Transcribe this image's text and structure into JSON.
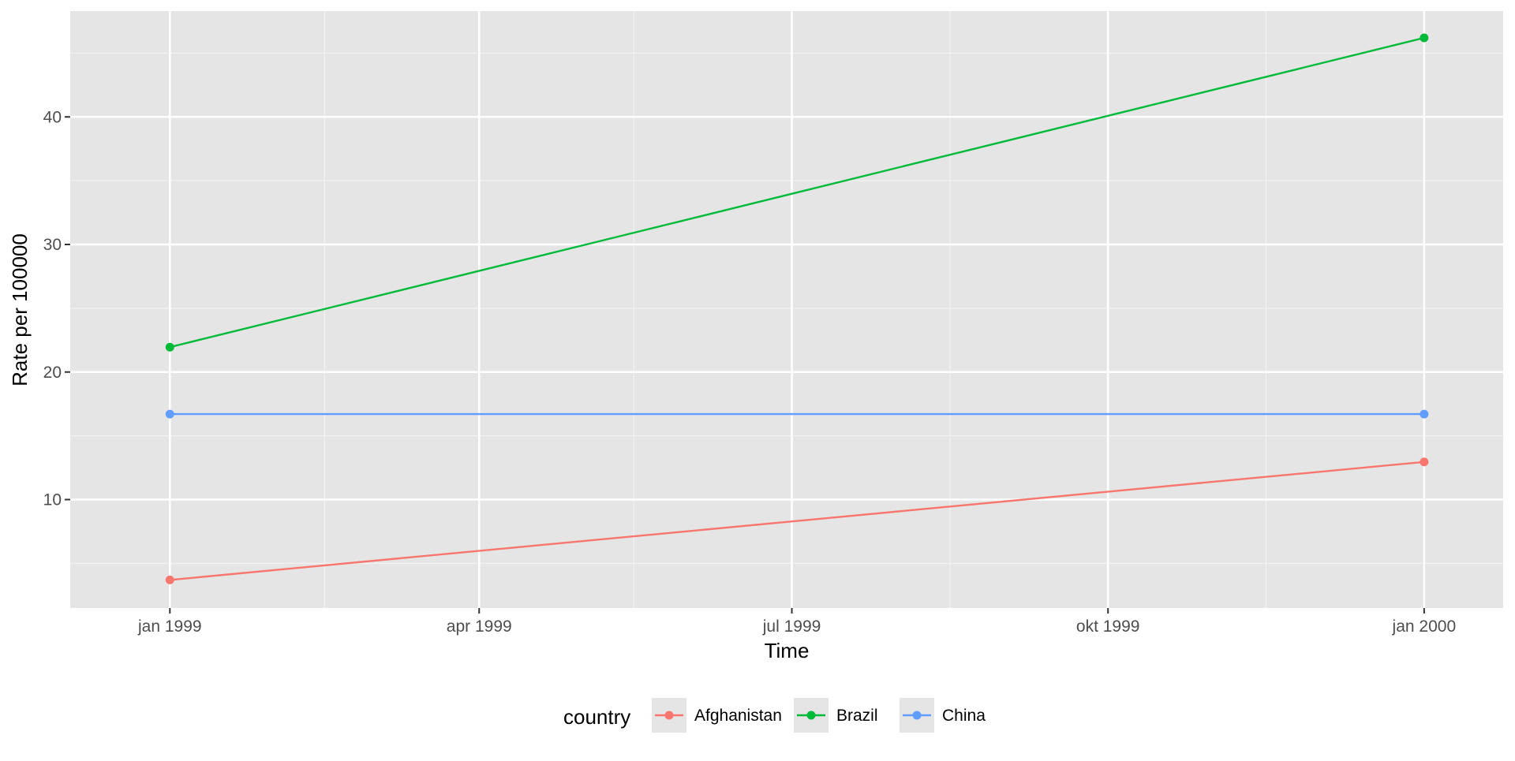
{
  "chart_data": {
    "type": "line",
    "title": "",
    "xlabel": "Time",
    "ylabel": "Rate per 100000",
    "x": [
      "1999-01-01",
      "2000-01-01"
    ],
    "x_ticks": [
      {
        "date": "1999-01-01",
        "label": "jan 1999"
      },
      {
        "date": "1999-04-01",
        "label": "apr 1999"
      },
      {
        "date": "1999-07-01",
        "label": "jul 1999"
      },
      {
        "date": "1999-10-01",
        "label": "okt 1999"
      },
      {
        "date": "2000-01-01",
        "label": "jan 2000"
      }
    ],
    "x_minor_ticks": [
      "1999-02-15",
      "1999-05-16",
      "1999-08-16",
      "1999-11-16"
    ],
    "y_ticks": [
      10,
      20,
      30,
      40
    ],
    "y_minor_ticks": [
      5,
      15,
      25,
      35,
      45
    ],
    "ylim": [
      1.5,
      48.3
    ],
    "xlim": [
      "1998-12-03",
      "2000-01-24"
    ],
    "grid": true,
    "legend": {
      "title": "country",
      "position": "bottom"
    },
    "series": [
      {
        "name": "Afghanistan",
        "color": "#F8766D",
        "values": [
          3.7,
          12.95
        ]
      },
      {
        "name": "Brazil",
        "color": "#00BA38",
        "values": [
          21.95,
          46.2
        ]
      },
      {
        "name": "China",
        "color": "#619CFF",
        "values": [
          16.7,
          16.7
        ]
      }
    ]
  }
}
